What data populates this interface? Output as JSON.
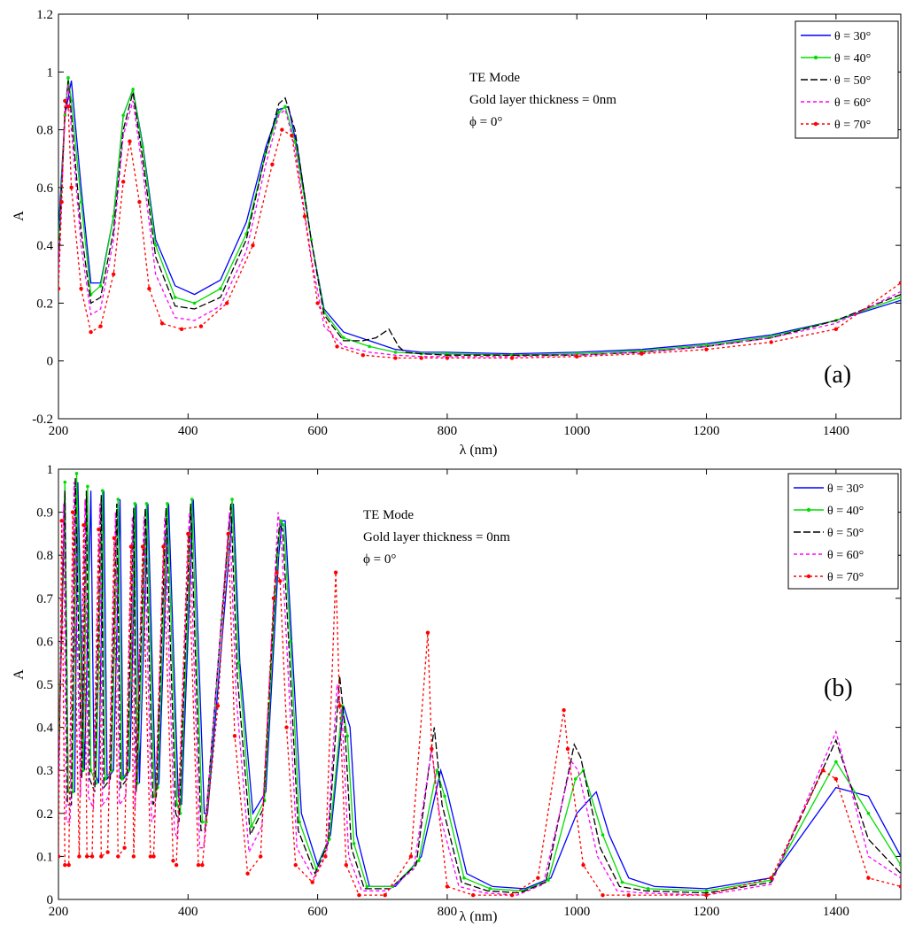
{
  "series_styles": [
    {
      "name": "θ = 30°",
      "color": "#0000ff",
      "dash": "",
      "marker": "none"
    },
    {
      "name": "θ = 40°",
      "color": "#00dd00",
      "dash": "",
      "marker": "dot"
    },
    {
      "name": "θ = 50°",
      "color": "#000000",
      "dash": "8 3",
      "marker": "none"
    },
    {
      "name": "θ = 60°",
      "color": "#ff00ff",
      "dash": "4 3",
      "marker": "none"
    },
    {
      "name": "θ = 70°",
      "color": "#ff0000",
      "dash": "3 3",
      "marker": "star"
    }
  ],
  "chart_data": [
    {
      "type": "line",
      "panel_label": "(a)",
      "xlabel": "λ (nm)",
      "ylabel": "A",
      "xlim": [
        200,
        1500
      ],
      "ylim": [
        -0.2,
        1.2
      ],
      "xticks": [
        200,
        400,
        600,
        800,
        1000,
        1200,
        1400
      ],
      "yticks": [
        -0.2,
        0,
        0.2,
        0.4,
        0.6,
        0.8,
        1,
        1.2
      ],
      "legend_position": "top-right",
      "annotations": [
        "TE Mode",
        "Gold layer thickness = 0nm",
        "ϕ = 0°"
      ],
      "series": [
        {
          "name": "θ = 30°",
          "x": [
            200,
            210,
            220,
            235,
            250,
            265,
            285,
            300,
            315,
            330,
            350,
            380,
            410,
            450,
            490,
            520,
            540,
            555,
            570,
            590,
            610,
            640,
            680,
            720,
            760,
            800,
            900,
            1000,
            1100,
            1200,
            1300,
            1400,
            1500
          ],
          "y": [
            0.45,
            0.85,
            0.97,
            0.6,
            0.27,
            0.27,
            0.5,
            0.85,
            0.94,
            0.75,
            0.42,
            0.26,
            0.23,
            0.28,
            0.48,
            0.74,
            0.87,
            0.88,
            0.72,
            0.42,
            0.18,
            0.1,
            0.07,
            0.04,
            0.03,
            0.03,
            0.025,
            0.03,
            0.04,
            0.06,
            0.09,
            0.14,
            0.21
          ]
        },
        {
          "name": "θ = 40°",
          "x": [
            200,
            210,
            215,
            220,
            235,
            250,
            265,
            285,
            300,
            315,
            330,
            350,
            380,
            410,
            450,
            490,
            520,
            540,
            550,
            565,
            590,
            610,
            640,
            680,
            720,
            760,
            800,
            900,
            1000,
            1100,
            1200,
            1300,
            1400,
            1500
          ],
          "y": [
            0.4,
            0.85,
            0.98,
            0.9,
            0.55,
            0.23,
            0.26,
            0.5,
            0.85,
            0.94,
            0.74,
            0.4,
            0.22,
            0.2,
            0.25,
            0.44,
            0.72,
            0.86,
            0.88,
            0.76,
            0.42,
            0.17,
            0.08,
            0.05,
            0.03,
            0.025,
            0.025,
            0.02,
            0.025,
            0.035,
            0.055,
            0.085,
            0.14,
            0.22
          ]
        },
        {
          "name": "θ = 50°",
          "x": [
            200,
            210,
            215,
            220,
            235,
            250,
            265,
            285,
            300,
            315,
            330,
            350,
            380,
            410,
            450,
            490,
            520,
            540,
            550,
            565,
            590,
            610,
            640,
            670,
            690,
            710,
            725,
            735,
            760,
            800,
            900,
            1000,
            1100,
            1200,
            1300,
            1400,
            1500
          ],
          "y": [
            0.35,
            0.85,
            0.97,
            0.85,
            0.45,
            0.2,
            0.22,
            0.45,
            0.8,
            0.93,
            0.7,
            0.36,
            0.19,
            0.18,
            0.22,
            0.42,
            0.72,
            0.89,
            0.91,
            0.8,
            0.42,
            0.16,
            0.07,
            0.07,
            0.08,
            0.11,
            0.05,
            0.03,
            0.025,
            0.02,
            0.02,
            0.02,
            0.03,
            0.05,
            0.08,
            0.14,
            0.23
          ]
        },
        {
          "name": "θ = 60°",
          "x": [
            200,
            210,
            215,
            220,
            235,
            250,
            265,
            285,
            300,
            315,
            330,
            350,
            380,
            410,
            450,
            490,
            520,
            540,
            550,
            565,
            590,
            610,
            640,
            680,
            720,
            760,
            800,
            900,
            1000,
            1100,
            1200,
            1300,
            1400,
            1500
          ],
          "y": [
            0.3,
            0.85,
            0.96,
            0.8,
            0.4,
            0.16,
            0.18,
            0.42,
            0.78,
            0.9,
            0.66,
            0.3,
            0.15,
            0.14,
            0.19,
            0.38,
            0.68,
            0.85,
            0.87,
            0.74,
            0.36,
            0.12,
            0.05,
            0.03,
            0.02,
            0.015,
            0.015,
            0.015,
            0.02,
            0.03,
            0.05,
            0.08,
            0.13,
            0.24
          ]
        },
        {
          "name": "θ = 70°",
          "x": [
            200,
            205,
            210,
            215,
            220,
            235,
            250,
            265,
            285,
            300,
            310,
            325,
            340,
            360,
            390,
            420,
            460,
            500,
            530,
            545,
            560,
            580,
            600,
            630,
            670,
            720,
            760,
            800,
            900,
            1000,
            1100,
            1200,
            1300,
            1400,
            1500
          ],
          "y": [
            0.25,
            0.55,
            0.9,
            0.88,
            0.6,
            0.25,
            0.1,
            0.12,
            0.3,
            0.62,
            0.76,
            0.55,
            0.25,
            0.13,
            0.11,
            0.12,
            0.2,
            0.4,
            0.68,
            0.8,
            0.78,
            0.5,
            0.2,
            0.05,
            0.02,
            0.01,
            0.01,
            0.01,
            0.01,
            0.015,
            0.025,
            0.04,
            0.065,
            0.11,
            0.27
          ]
        }
      ]
    },
    {
      "type": "line",
      "panel_label": "(b)",
      "xlabel": "λ (nm)",
      "ylabel": "A",
      "xlim": [
        200,
        1500
      ],
      "ylim": [
        0,
        1
      ],
      "xticks": [
        200,
        400,
        600,
        800,
        1000,
        1200,
        1400
      ],
      "yticks": [
        0,
        0.1,
        0.2,
        0.3,
        0.4,
        0.5,
        0.6,
        0.7,
        0.8,
        0.9,
        1
      ],
      "legend_position": "top-right",
      "annotations": [
        "TE Mode",
        "Gold layer thickness = 0nm",
        "ϕ = 0°"
      ],
      "series": [
        {
          "name": "θ = 30°",
          "x": [
            200,
            210,
            215,
            225,
            230,
            240,
            250,
            255,
            262,
            270,
            275,
            285,
            295,
            300,
            310,
            320,
            325,
            338,
            350,
            355,
            370,
            385,
            390,
            408,
            425,
            430,
            455,
            470,
            480,
            500,
            520,
            540,
            545,
            550,
            560,
            575,
            600,
            620,
            640,
            650,
            660,
            680,
            720,
            760,
            790,
            800,
            830,
            870,
            920,
            960,
            1000,
            1030,
            1050,
            1080,
            1120,
            1200,
            1300,
            1400,
            1450,
            1500
          ],
          "y": [
            0.3,
            0.95,
            0.25,
            0.25,
            0.97,
            0.3,
            0.95,
            0.3,
            0.27,
            0.95,
            0.28,
            0.3,
            0.93,
            0.28,
            0.3,
            0.92,
            0.27,
            0.92,
            0.25,
            0.27,
            0.92,
            0.24,
            0.22,
            0.93,
            0.2,
            0.2,
            0.65,
            0.92,
            0.55,
            0.2,
            0.25,
            0.8,
            0.88,
            0.88,
            0.6,
            0.2,
            0.08,
            0.15,
            0.45,
            0.4,
            0.15,
            0.03,
            0.03,
            0.1,
            0.3,
            0.25,
            0.06,
            0.03,
            0.025,
            0.05,
            0.2,
            0.25,
            0.15,
            0.05,
            0.03,
            0.025,
            0.05,
            0.26,
            0.24,
            0.1
          ]
        },
        {
          "name": "θ = 40°",
          "x": [
            200,
            210,
            215,
            222,
            228,
            238,
            245,
            250,
            258,
            268,
            272,
            282,
            292,
            298,
            308,
            318,
            322,
            336,
            348,
            353,
            368,
            383,
            388,
            406,
            422,
            428,
            452,
            468,
            478,
            498,
            518,
            538,
            543,
            548,
            558,
            572,
            598,
            618,
            638,
            646,
            656,
            676,
            716,
            756,
            784,
            796,
            826,
            866,
            916,
            956,
            998,
            1010,
            1040,
            1070,
            1110,
            1200,
            1300,
            1400,
            1450,
            1500
          ],
          "y": [
            0.35,
            0.97,
            0.25,
            0.25,
            0.99,
            0.3,
            0.96,
            0.3,
            0.27,
            0.95,
            0.28,
            0.3,
            0.93,
            0.28,
            0.3,
            0.92,
            0.27,
            0.92,
            0.24,
            0.26,
            0.92,
            0.22,
            0.2,
            0.93,
            0.18,
            0.18,
            0.65,
            0.93,
            0.55,
            0.17,
            0.23,
            0.8,
            0.88,
            0.87,
            0.6,
            0.18,
            0.07,
            0.14,
            0.45,
            0.38,
            0.13,
            0.03,
            0.03,
            0.09,
            0.3,
            0.24,
            0.05,
            0.025,
            0.02,
            0.045,
            0.28,
            0.3,
            0.15,
            0.04,
            0.025,
            0.02,
            0.045,
            0.32,
            0.2,
            0.08
          ]
        },
        {
          "name": "θ = 50°",
          "x": [
            200,
            210,
            214,
            220,
            226,
            236,
            243,
            248,
            256,
            266,
            270,
            280,
            290,
            296,
            306,
            316,
            320,
            334,
            346,
            351,
            366,
            381,
            386,
            404,
            420,
            426,
            450,
            466,
            476,
            496,
            516,
            536,
            541,
            546,
            556,
            570,
            596,
            616,
            634,
            642,
            652,
            672,
            712,
            752,
            780,
            792,
            822,
            862,
            912,
            952,
            996,
            1006,
            1036,
            1066,
            1106,
            1200,
            1300,
            1400,
            1450,
            1500
          ],
          "y": [
            0.3,
            0.95,
            0.22,
            0.22,
            0.98,
            0.28,
            0.95,
            0.28,
            0.25,
            0.94,
            0.26,
            0.28,
            0.92,
            0.26,
            0.28,
            0.91,
            0.25,
            0.91,
            0.22,
            0.24,
            0.91,
            0.2,
            0.18,
            0.92,
            0.16,
            0.16,
            0.62,
            0.92,
            0.52,
            0.15,
            0.21,
            0.78,
            0.87,
            0.86,
            0.58,
            0.16,
            0.06,
            0.13,
            0.52,
            0.4,
            0.12,
            0.025,
            0.025,
            0.08,
            0.4,
            0.22,
            0.04,
            0.02,
            0.015,
            0.04,
            0.36,
            0.33,
            0.12,
            0.03,
            0.02,
            0.015,
            0.04,
            0.37,
            0.14,
            0.06
          ]
        },
        {
          "name": "θ = 60°",
          "x": [
            200,
            208,
            212,
            218,
            224,
            234,
            241,
            246,
            254,
            264,
            268,
            278,
            288,
            294,
            304,
            314,
            318,
            332,
            344,
            349,
            364,
            379,
            384,
            402,
            418,
            424,
            448,
            464,
            474,
            494,
            514,
            534,
            539,
            544,
            554,
            568,
            594,
            614,
            630,
            638,
            648,
            668,
            708,
            748,
            776,
            788,
            818,
            858,
            908,
            948,
            992,
            1002,
            1032,
            1062,
            1102,
            1200,
            1300,
            1400,
            1450,
            1500
          ],
          "y": [
            0.25,
            0.92,
            0.18,
            0.18,
            0.97,
            0.24,
            0.93,
            0.24,
            0.21,
            0.92,
            0.22,
            0.24,
            0.9,
            0.22,
            0.24,
            0.89,
            0.21,
            0.89,
            0.18,
            0.2,
            0.89,
            0.16,
            0.14,
            0.9,
            0.12,
            0.12,
            0.58,
            0.9,
            0.48,
            0.11,
            0.17,
            0.75,
            0.9,
            0.84,
            0.54,
            0.12,
            0.05,
            0.11,
            0.5,
            0.42,
            0.1,
            0.02,
            0.02,
            0.07,
            0.35,
            0.2,
            0.03,
            0.015,
            0.01,
            0.035,
            0.32,
            0.3,
            0.1,
            0.02,
            0.015,
            0.01,
            0.035,
            0.39,
            0.1,
            0.05
          ]
        },
        {
          "name": "θ = 70°",
          "x": [
            200,
            205,
            210,
            216,
            222,
            232,
            239,
            244,
            252,
            262,
            266,
            276,
            286,
            292,
            302,
            312,
            316,
            330,
            342,
            347,
            362,
            377,
            382,
            400,
            416,
            422,
            446,
            462,
            472,
            492,
            512,
            532,
            537,
            542,
            552,
            566,
            592,
            612,
            628,
            634,
            644,
            664,
            704,
            744,
            770,
            776,
            800,
            840,
            900,
            940,
            980,
            986,
            1010,
            1040,
            1080,
            1200,
            1300,
            1380,
            1400,
            1450,
            1500
          ],
          "y": [
            0.1,
            0.88,
            0.08,
            0.08,
            0.9,
            0.1,
            0.87,
            0.1,
            0.1,
            0.86,
            0.1,
            0.11,
            0.84,
            0.1,
            0.12,
            0.82,
            0.1,
            0.82,
            0.1,
            0.1,
            0.82,
            0.09,
            0.08,
            0.85,
            0.08,
            0.08,
            0.45,
            0.85,
            0.38,
            0.06,
            0.1,
            0.7,
            0.76,
            0.74,
            0.4,
            0.08,
            0.04,
            0.1,
            0.76,
            0.45,
            0.08,
            0.01,
            0.01,
            0.1,
            0.62,
            0.35,
            0.03,
            0.01,
            0.01,
            0.05,
            0.44,
            0.35,
            0.08,
            0.01,
            0.01,
            0.01,
            0.05,
            0.3,
            0.28,
            0.05,
            0.03
          ]
        }
      ]
    }
  ]
}
